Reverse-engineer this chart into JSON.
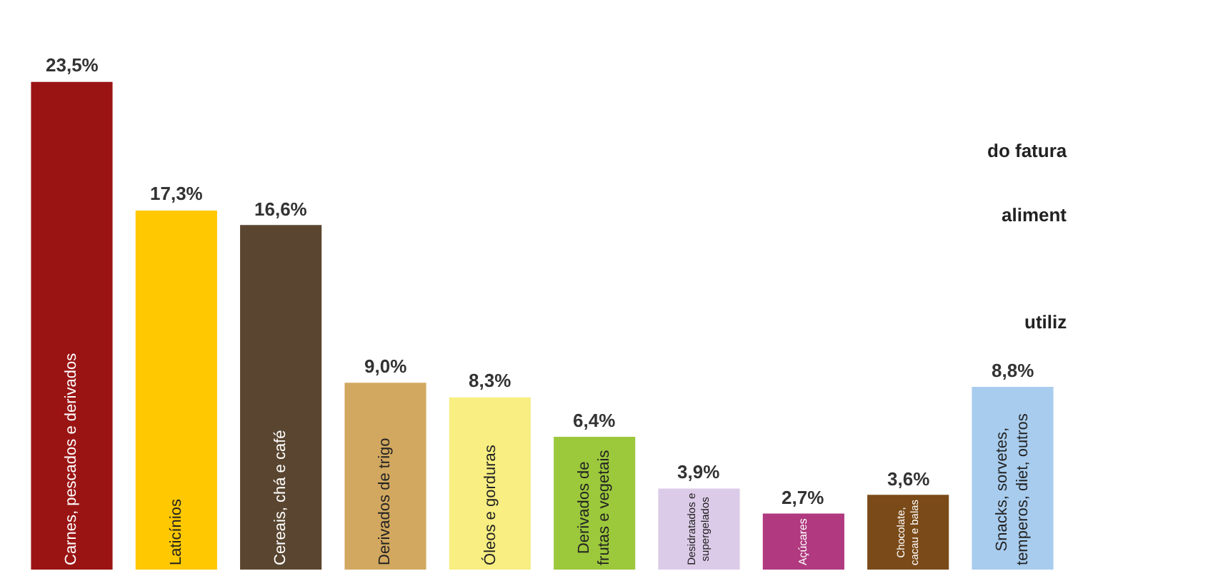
{
  "chart_data": {
    "type": "bar",
    "categories": [
      "Carnes, pescados e derivados",
      "Laticínios",
      "Cereais, chá e café",
      "Derivados de trigo",
      "Óleos e gorduras",
      "Derivados de\nfrutas e vegetais",
      "Desidratados e\nsupergelados",
      "Açúcares",
      "Chocolate,\ncacau e balas",
      "Snacks, sorvetes,\ntemperos, diet, outros"
    ],
    "values": [
      23.5,
      17.3,
      16.6,
      9.0,
      8.3,
      6.4,
      3.9,
      2.7,
      3.6,
      8.8
    ],
    "colors": [
      "#9b1414",
      "#ffc800",
      "#5a4630",
      "#d2a860",
      "#f8ee82",
      "#9cc83c",
      "#dccbe8",
      "#b0397f",
      "#7a4a18",
      "#a8ccee"
    ],
    "value_labels": [
      "23,5%",
      "17,3%",
      "16,6%",
      "9,0%",
      "8,3%",
      "6,4%",
      "3,9%",
      "2,7%",
      "3,6%",
      "8,8%"
    ],
    "annotations": [
      "do fatura",
      "aliment",
      "utiliz"
    ]
  }
}
